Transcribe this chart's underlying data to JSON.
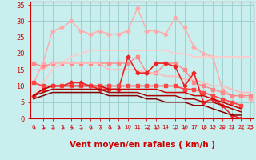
{
  "background_color": "#c8eeee",
  "grid_color": "#99cccc",
  "xlabel": "Vent moyen/en rafales ( km/h )",
  "xlim": [
    -0.3,
    23.3
  ],
  "ylim": [
    0,
    36
  ],
  "yticks": [
    0,
    5,
    10,
    15,
    20,
    25,
    30,
    35
  ],
  "xticks": [
    0,
    1,
    2,
    3,
    4,
    5,
    6,
    7,
    8,
    9,
    10,
    11,
    12,
    13,
    14,
    15,
    16,
    17,
    18,
    19,
    20,
    21,
    22,
    23
  ],
  "lines": [
    {
      "color": "#ffaaaa",
      "lw": 1.0,
      "marker": "D",
      "ms": 2.5,
      "y": [
        11,
        17,
        27,
        28,
        30,
        27,
        26,
        27,
        26,
        26,
        27,
        34,
        27,
        27,
        26,
        31,
        28,
        22,
        20,
        19,
        9,
        7,
        7,
        6
      ]
    },
    {
      "color": "#ff8888",
      "lw": 1.0,
      "marker": "s",
      "ms": 2.5,
      "y": [
        17,
        16,
        17,
        17,
        17,
        17,
        17,
        17,
        17,
        17,
        17,
        19,
        14,
        14,
        17,
        17,
        15,
        11,
        10,
        9,
        8,
        7,
        7,
        7
      ]
    },
    {
      "color": "#ffcccc",
      "lw": 1.3,
      "marker": null,
      "ms": 0,
      "y": [
        7,
        11,
        15,
        17,
        19,
        20,
        21,
        21,
        21,
        21,
        21,
        21,
        21,
        21,
        21,
        20,
        20,
        19,
        19,
        19,
        19,
        19,
        19,
        19
      ]
    },
    {
      "color": "#ffbbbb",
      "lw": 1.3,
      "marker": null,
      "ms": 0,
      "y": [
        15,
        15,
        17,
        17,
        17,
        17,
        17,
        17,
        15,
        15,
        15,
        15,
        14,
        14,
        13,
        13,
        12,
        12,
        11,
        10,
        10,
        9,
        8,
        8
      ]
    },
    {
      "color": "#ee2222",
      "lw": 1.2,
      "marker": "D",
      "ms": 2.5,
      "y": [
        7,
        9,
        10,
        10,
        11,
        11,
        10,
        9,
        9,
        9,
        19,
        14,
        14,
        17,
        17,
        16,
        10,
        14,
        5,
        6,
        4,
        1,
        0,
        null
      ]
    },
    {
      "color": "#ff4444",
      "lw": 1.2,
      "marker": "s",
      "ms": 2.5,
      "y": [
        11,
        10,
        10,
        10,
        10,
        10,
        10,
        10,
        10,
        10,
        10,
        10,
        10,
        10,
        10,
        10,
        9,
        9,
        8,
        7,
        6,
        5,
        4,
        null
      ]
    },
    {
      "color": "#cc0000",
      "lw": 1.1,
      "marker": null,
      "ms": 0,
      "y": [
        7,
        9,
        10,
        10,
        10,
        10,
        10,
        10,
        9,
        9,
        9,
        9,
        9,
        9,
        8,
        8,
        8,
        7,
        7,
        6,
        5,
        4,
        3,
        null
      ]
    },
    {
      "color": "#aa0000",
      "lw": 1.1,
      "marker": null,
      "ms": 0,
      "y": [
        7,
        8,
        9,
        9,
        9,
        9,
        9,
        9,
        8,
        8,
        8,
        8,
        7,
        7,
        7,
        7,
        6,
        6,
        5,
        5,
        4,
        3,
        2,
        null
      ]
    },
    {
      "color": "#880000",
      "lw": 1.1,
      "marker": null,
      "ms": 0,
      "y": [
        6,
        7,
        8,
        8,
        8,
        8,
        8,
        8,
        7,
        7,
        7,
        7,
        6,
        6,
        5,
        5,
        5,
        4,
        4,
        3,
        2,
        1,
        1,
        null
      ]
    }
  ],
  "wind_arrows": [
    "↗",
    "↗",
    "↗",
    "↗",
    "↗",
    "↗",
    "↗",
    "↗",
    "↗",
    "↗",
    "→",
    "→",
    "↘",
    "↓",
    "↓",
    "↓",
    "↓",
    "↓",
    "↙",
    "↘",
    "↗",
    "↗",
    "↘",
    "↙"
  ],
  "label_color": "#cc0000",
  "tick_fontsize": 6,
  "xlabel_fontsize": 7.5
}
